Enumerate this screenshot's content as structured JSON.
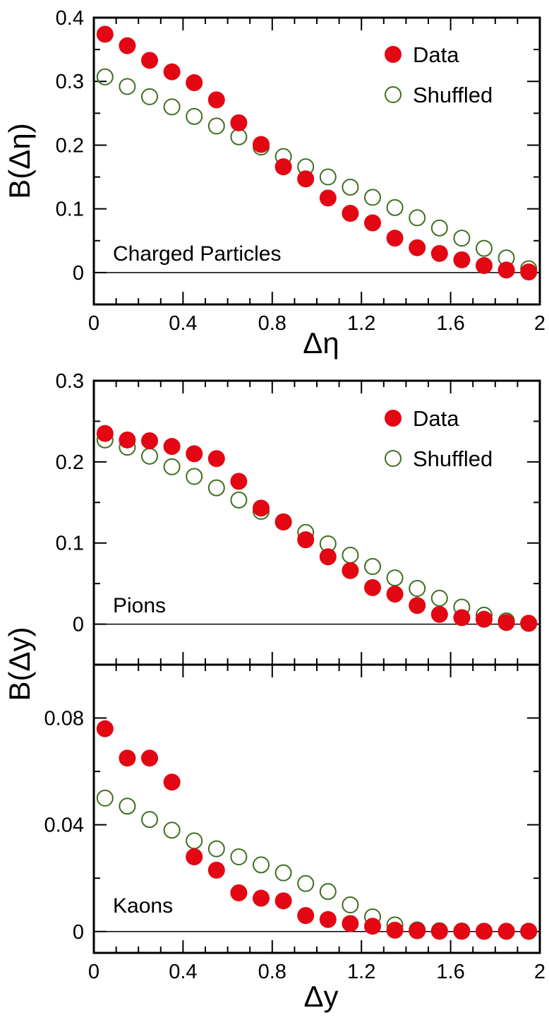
{
  "colors": {
    "data": "#e30613",
    "shuffled": "#3f6e1f",
    "axis": "#000000"
  },
  "legend": {
    "data_label": "Data",
    "shuffled_label": "Shuffled"
  },
  "chart_data": [
    {
      "type": "scatter",
      "panel_label": "Charged Particles",
      "xlabel": "Δη",
      "ylabel": "B(Δη)",
      "xlim": [
        0,
        2
      ],
      "ylim": [
        -0.05,
        0.4
      ],
      "xticks": [
        0,
        0.4,
        0.8,
        1.2,
        1.6,
        2
      ],
      "xtick_labels": [
        "0",
        "0.4",
        "0.8",
        "1.2",
        "1.6",
        "2"
      ],
      "yticks": [
        0,
        0.1,
        0.2,
        0.3,
        0.4
      ],
      "ytick_labels": [
        "0",
        "0.1",
        "0.2",
        "0.3",
        "0.4"
      ],
      "legend_position": "top-right",
      "x": [
        0.05,
        0.15,
        0.25,
        0.35,
        0.45,
        0.55,
        0.65,
        0.75,
        0.85,
        0.95,
        1.05,
        1.15,
        1.25,
        1.35,
        1.45,
        1.55,
        1.65,
        1.75,
        1.85,
        1.95
      ],
      "series": [
        {
          "name": "Data",
          "marker": "filled-circle",
          "values": [
            0.374,
            0.356,
            0.333,
            0.315,
            0.298,
            0.271,
            0.235,
            0.201,
            0.166,
            0.147,
            0.117,
            0.093,
            0.078,
            0.054,
            0.039,
            0.03,
            0.02,
            0.011,
            0.004,
            0.001
          ]
        },
        {
          "name": "Shuffled",
          "marker": "open-circle",
          "values": [
            0.307,
            0.292,
            0.276,
            0.26,
            0.245,
            0.23,
            0.213,
            0.197,
            0.182,
            0.166,
            0.15,
            0.134,
            0.118,
            0.102,
            0.086,
            0.07,
            0.054,
            0.038,
            0.023,
            0.006
          ]
        }
      ]
    },
    {
      "type": "scatter",
      "panel_label": "Pions",
      "xlabel": "",
      "ylabel": "B(Δy)",
      "xlim": [
        0,
        2
      ],
      "ylim": [
        -0.05,
        0.3
      ],
      "yticks": [
        0,
        0.1,
        0.2,
        0.3
      ],
      "ytick_labels": [
        "0",
        "0.1",
        "0.2",
        "0.3"
      ],
      "legend_position": "top-right",
      "x": [
        0.05,
        0.15,
        0.25,
        0.35,
        0.45,
        0.55,
        0.65,
        0.75,
        0.85,
        0.95,
        1.05,
        1.15,
        1.25,
        1.35,
        1.45,
        1.55,
        1.65,
        1.75,
        1.85,
        1.95
      ],
      "series": [
        {
          "name": "Data",
          "marker": "filled-circle",
          "values": [
            0.235,
            0.227,
            0.226,
            0.219,
            0.21,
            0.204,
            0.176,
            0.143,
            0.126,
            0.104,
            0.083,
            0.066,
            0.045,
            0.037,
            0.023,
            0.012,
            0.008,
            0.006,
            0.002,
            0.001
          ]
        },
        {
          "name": "Shuffled",
          "marker": "open-circle",
          "values": [
            0.227,
            0.218,
            0.207,
            0.194,
            0.182,
            0.168,
            0.153,
            0.139,
            0.126,
            0.113,
            0.099,
            0.085,
            0.071,
            0.057,
            0.044,
            0.032,
            0.021,
            0.011,
            0.004,
            0.001
          ]
        }
      ]
    },
    {
      "type": "scatter",
      "panel_label": "Kaons",
      "xlabel": "Δy",
      "ylabel": "",
      "xlim": [
        0,
        2
      ],
      "ylim": [
        -0.008,
        0.1
      ],
      "xticks": [
        0,
        0.4,
        0.8,
        1.2,
        1.6,
        2
      ],
      "xtick_labels": [
        "0",
        "0.4",
        "0.8",
        "1.2",
        "1.6",
        "2"
      ],
      "yticks": [
        0,
        0.04,
        0.08
      ],
      "ytick_labels": [
        "0",
        "0.04",
        "0.08"
      ],
      "x": [
        0.05,
        0.15,
        0.25,
        0.35,
        0.45,
        0.55,
        0.65,
        0.75,
        0.85,
        0.95,
        1.05,
        1.15,
        1.25,
        1.35,
        1.45,
        1.55,
        1.65,
        1.75,
        1.85,
        1.95
      ],
      "series": [
        {
          "name": "Data",
          "marker": "filled-circle",
          "values": [
            0.076,
            0.065,
            0.065,
            0.056,
            0.028,
            0.023,
            0.0145,
            0.0125,
            0.0115,
            0.006,
            0.0045,
            0.003,
            0.002,
            0.0005,
            0.0003,
            0.0001,
            0.0001,
            0.0001,
            0.0001,
            0.0001
          ],
          "errors": [
            0.0018,
            0.0018,
            0.0015,
            0.0012,
            0.0008,
            0.0007,
            0.0006,
            0.0006,
            0.0006,
            0.0005,
            0.0004,
            0.0004,
            0.0003,
            0.0003,
            0.0002,
            0.0002,
            0.0002,
            0.0002,
            0.0002,
            0.0002
          ]
        },
        {
          "name": "Shuffled",
          "marker": "open-circle",
          "values": [
            0.05,
            0.047,
            0.042,
            0.038,
            0.034,
            0.031,
            0.028,
            0.025,
            0.022,
            0.018,
            0.015,
            0.01,
            0.0055,
            0.0025,
            0.0006,
            0.0003,
            0.0002,
            0.0001,
            0.0001,
            0.0001
          ]
        }
      ]
    }
  ]
}
